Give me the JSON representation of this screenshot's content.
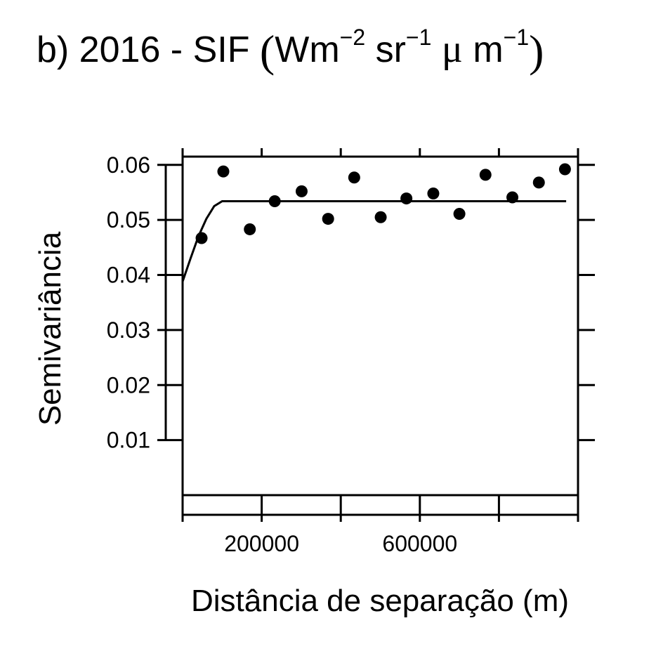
{
  "chart_data": {
    "type": "scatter",
    "title": {
      "prefix": "b) 2016 - SIF",
      "open_paren": "(",
      "close_paren": ")",
      "unit_parts": [
        {
          "base": "Wm",
          "exp": "−2"
        },
        {
          "base": "sr",
          "exp": "−1"
        },
        {
          "base": "μ",
          "exp": ""
        },
        {
          "base": "m",
          "exp": "−1"
        }
      ]
    },
    "xlabel": "Distância de separação (m)",
    "ylabel": "Semivariância",
    "xlim": [
      0,
      1000000
    ],
    "ylim": [
      0,
      0.0615
    ],
    "x_ticks": [
      0,
      200000,
      400000,
      600000,
      800000,
      1000000
    ],
    "x_tick_labels": [
      "",
      "200000",
      "",
      "600000",
      "",
      ""
    ],
    "y_ticks": [
      0.01,
      0.02,
      0.03,
      0.04,
      0.05,
      0.06
    ],
    "y_tick_labels": [
      "0.01",
      "0.02",
      "0.03",
      "0.04",
      "0.05",
      "0.06"
    ],
    "grid": false,
    "points": [
      {
        "x": 48000,
        "y": 0.0467
      },
      {
        "x": 103000,
        "y": 0.0588
      },
      {
        "x": 170000,
        "y": 0.0483
      },
      {
        "x": 233000,
        "y": 0.0534
      },
      {
        "x": 301000,
        "y": 0.0552
      },
      {
        "x": 368000,
        "y": 0.0502
      },
      {
        "x": 434000,
        "y": 0.0577
      },
      {
        "x": 501000,
        "y": 0.0505
      },
      {
        "x": 566000,
        "y": 0.0539
      },
      {
        "x": 634000,
        "y": 0.0548
      },
      {
        "x": 700000,
        "y": 0.0511
      },
      {
        "x": 766000,
        "y": 0.0582
      },
      {
        "x": 834000,
        "y": 0.0541
      },
      {
        "x": 901000,
        "y": 0.0568
      },
      {
        "x": 967000,
        "y": 0.0592
      }
    ],
    "model_line": [
      {
        "x": 0,
        "y": 0.0388
      },
      {
        "x": 20000,
        "y": 0.043
      },
      {
        "x": 40000,
        "y": 0.047
      },
      {
        "x": 60000,
        "y": 0.0502
      },
      {
        "x": 80000,
        "y": 0.0525
      },
      {
        "x": 100000,
        "y": 0.0534
      },
      {
        "x": 970000,
        "y": 0.0534
      }
    ]
  }
}
